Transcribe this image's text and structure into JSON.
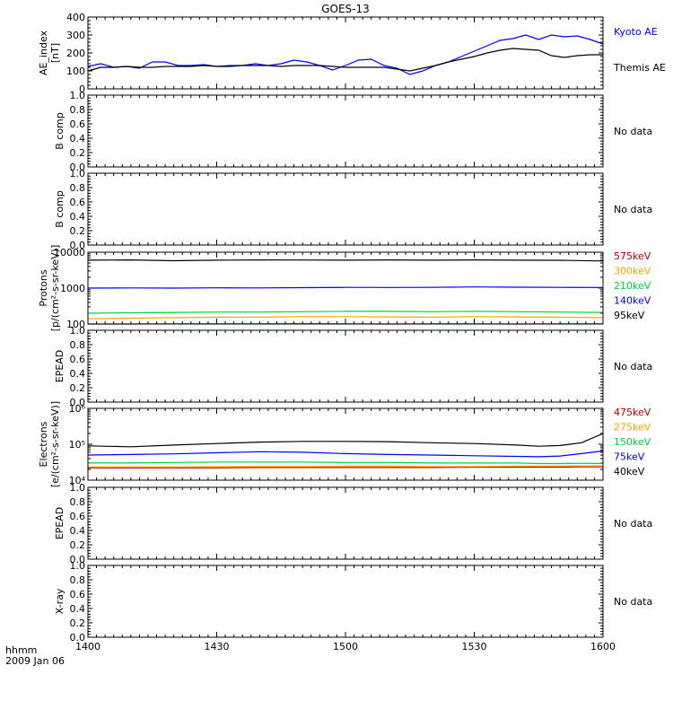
{
  "title": "GOES-13",
  "time_label": "hhmm",
  "date_label": "2009 Jan 06",
  "colors": {
    "axis": "#000000",
    "kyoto": "#0000ff",
    "themis": "#000000",
    "red": "#b00000",
    "orange": "#ffa500",
    "green": "#00d040",
    "blue": "#0000ff",
    "black": "#000000"
  },
  "chart_data": [
    {
      "type": "line",
      "name": "ae",
      "ylabel": "AE_index\n[nT]",
      "yscale": "linear",
      "ylim": [
        0,
        400
      ],
      "yticks": [
        0,
        100,
        200,
        300,
        400
      ],
      "ytick_labels": [
        "0",
        "100",
        "200",
        "300",
        "400"
      ],
      "x": [
        0,
        3,
        6,
        9,
        12,
        15,
        18,
        21,
        24,
        27,
        30,
        33,
        36,
        39,
        42,
        45,
        48,
        51,
        54,
        57,
        60,
        63,
        66,
        69,
        72,
        75,
        78,
        81,
        84,
        87,
        90,
        93,
        96,
        99,
        102,
        105,
        108,
        111,
        114,
        117,
        120
      ],
      "series": [
        {
          "name": "Kyoto AE",
          "color": "#0000ff",
          "values": [
            125,
            140,
            120,
            125,
            115,
            150,
            150,
            130,
            130,
            135,
            125,
            130,
            130,
            140,
            130,
            140,
            160,
            150,
            130,
            105,
            130,
            160,
            165,
            130,
            115,
            80,
            100,
            130,
            150,
            180,
            210,
            240,
            270,
            280,
            300,
            275,
            300,
            290,
            295,
            275,
            250
          ]
        },
        {
          "name": "Themis AE",
          "color": "#000000",
          "values": [
            100,
            120,
            120,
            125,
            120,
            120,
            125,
            125,
            125,
            130,
            125,
            125,
            130,
            130,
            130,
            125,
            130,
            130,
            130,
            125,
            120,
            120,
            120,
            120,
            110,
            100,
            115,
            130,
            150,
            165,
            180,
            200,
            215,
            225,
            220,
            215,
            185,
            175,
            185,
            190,
            190
          ]
        }
      ]
    },
    {
      "type": "line",
      "name": "bcomp1",
      "ylabel": "B comp",
      "yscale": "linear",
      "ylim": [
        0,
        1
      ],
      "yticks": [
        0,
        0.2,
        0.4,
        0.6,
        0.8,
        1.0
      ],
      "ytick_labels": [
        "0.0",
        "0.2",
        "0.4",
        "0.6",
        "0.8",
        "1.0"
      ],
      "nodata": "No data"
    },
    {
      "type": "line",
      "name": "bcomp2",
      "ylabel": "B comp",
      "yscale": "linear",
      "ylim": [
        0,
        1
      ],
      "yticks": [
        0,
        0.2,
        0.4,
        0.6,
        0.8,
        1.0
      ],
      "ytick_labels": [
        "0.0",
        "0.2",
        "0.4",
        "0.6",
        "0.8",
        "1.0"
      ],
      "nodata": "No data"
    },
    {
      "type": "line",
      "name": "protons",
      "ylabel": "Protons\n[p/(cm²-s-sr-keV)]",
      "yscale": "log",
      "ylim": [
        100,
        10000
      ],
      "yticks": [
        100,
        1000,
        10000
      ],
      "ytick_labels": [
        "100",
        "1000",
        "10000"
      ],
      "x": [
        0,
        10,
        20,
        30,
        40,
        50,
        60,
        70,
        80,
        90,
        100,
        110,
        120
      ],
      "series": [
        {
          "name": "575keV",
          "color": "#b00000",
          "values": [
            100,
            100,
            101,
            101,
            101,
            102,
            101,
            100,
            101,
            101,
            100,
            101,
            101
          ]
        },
        {
          "name": "300keV",
          "color": "#ffa500",
          "values": [
            140,
            145,
            150,
            155,
            155,
            160,
            160,
            158,
            155,
            160,
            158,
            155,
            150
          ]
        },
        {
          "name": "210keV",
          "color": "#00d040",
          "values": [
            200,
            205,
            210,
            215,
            215,
            220,
            225,
            225,
            220,
            225,
            220,
            215,
            210
          ]
        },
        {
          "name": "140keV",
          "color": "#0000ff",
          "values": [
            1000,
            1010,
            1000,
            1020,
            1010,
            1030,
            1050,
            1040,
            1050,
            1080,
            1060,
            1050,
            1040
          ]
        },
        {
          "name": "95keV",
          "color": "#000000",
          "values": [
            6000,
            6100,
            5800,
            6000,
            6100,
            6050,
            6000,
            6100,
            6000,
            6100,
            6000,
            5950,
            5700
          ]
        }
      ]
    },
    {
      "type": "line",
      "name": "epead1",
      "ylabel": "EPEAD",
      "yscale": "linear",
      "ylim": [
        0,
        1
      ],
      "yticks": [
        0,
        0.2,
        0.4,
        0.6,
        0.8,
        1.0
      ],
      "ytick_labels": [
        "0.0",
        "0.2",
        "0.4",
        "0.6",
        "0.8",
        "1.0"
      ],
      "nodata": "No data"
    },
    {
      "type": "line",
      "name": "electrons",
      "ylabel": "Electrons\n[e/(cm²-s-sr-keV)]",
      "yscale": "log",
      "ylim": [
        10000,
        1000000
      ],
      "yticks": [
        10000,
        100000,
        1000000
      ],
      "ytick_labels": [
        "10⁴",
        "10⁵",
        "10⁶"
      ],
      "x": [
        0,
        10,
        20,
        30,
        40,
        50,
        60,
        70,
        80,
        90,
        100,
        105,
        110,
        115,
        120
      ],
      "series": [
        {
          "name": "475keV",
          "color": "#b00000",
          "values": [
            22000,
            22000,
            22000,
            22000,
            22500,
            22500,
            22500,
            22500,
            22500,
            23000,
            23000,
            23000,
            23000,
            23500,
            23500
          ]
        },
        {
          "name": "275keV",
          "color": "#ffa500",
          "values": [
            23500,
            23500,
            23500,
            24000,
            24000,
            24000,
            24500,
            24500,
            24000,
            24000,
            24500,
            24500,
            25000,
            25000,
            25000
          ]
        },
        {
          "name": "150keV",
          "color": "#00d040",
          "values": [
            30000,
            30000,
            31000,
            32000,
            32000,
            32000,
            31000,
            31000,
            30000,
            30000,
            30000,
            29000,
            29000,
            29500,
            29000
          ]
        },
        {
          "name": "75keV",
          "color": "#0000ff",
          "values": [
            50000,
            52000,
            54000,
            58000,
            62000,
            60000,
            55000,
            52000,
            50000,
            48000,
            46000,
            45000,
            47000,
            55000,
            65000
          ]
        },
        {
          "name": "40keV",
          "color": "#000000",
          "values": [
            90000,
            85000,
            95000,
            105000,
            115000,
            120000,
            120000,
            118000,
            110000,
            105000,
            95000,
            88000,
            92000,
            110000,
            200000
          ]
        }
      ]
    },
    {
      "type": "line",
      "name": "epead2",
      "ylabel": "EPEAD",
      "yscale": "linear",
      "ylim": [
        0,
        1
      ],
      "yticks": [
        0,
        0.2,
        0.4,
        0.6,
        0.8,
        1.0
      ],
      "ytick_labels": [
        "0.0",
        "0.2",
        "0.4",
        "0.6",
        "0.8",
        "1.0"
      ],
      "nodata": "No data"
    },
    {
      "type": "line",
      "name": "xray",
      "ylabel": "X-ray",
      "yscale": "linear",
      "ylim": [
        0,
        1
      ],
      "yticks": [
        0,
        0.2,
        0.4,
        0.6,
        0.8,
        1.0
      ],
      "ytick_labels": [
        "0.0",
        "0.2",
        "0.4",
        "0.6",
        "0.8",
        "1.0"
      ],
      "nodata": "No data"
    }
  ],
  "x_axis": {
    "xlim": [
      0,
      120
    ],
    "ticks": [
      0,
      30,
      60,
      90,
      120
    ],
    "tick_labels": [
      "1400",
      "1430",
      "1500",
      "1530",
      "1600"
    ]
  }
}
